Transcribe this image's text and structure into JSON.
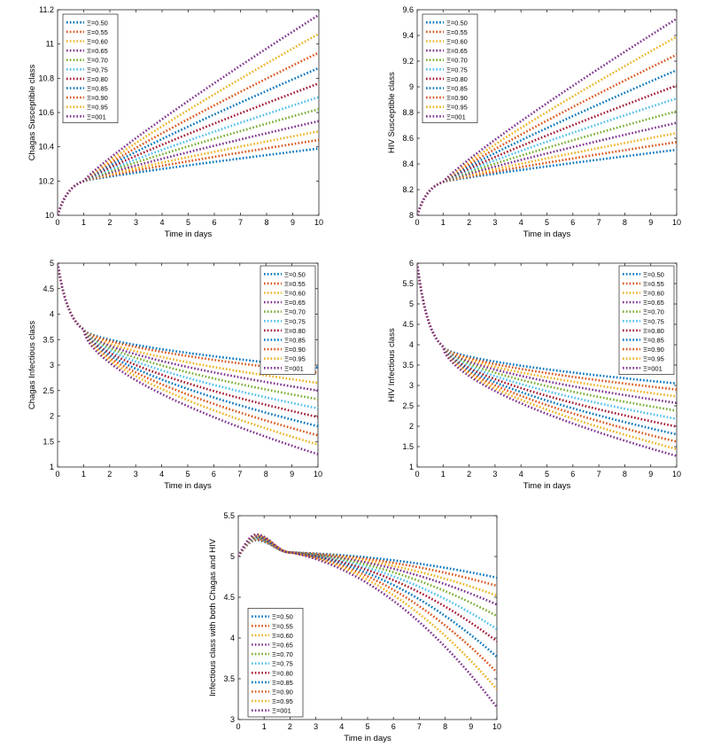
{
  "chart_data": [
    {
      "type": "line",
      "title": "",
      "xlabel": "Time in days",
      "ylabel": "Chagas Susceptible class",
      "xlim": [
        0,
        10
      ],
      "ylim": [
        10,
        11.2
      ],
      "xticks": [
        "0",
        "1",
        "2",
        "3",
        "4",
        "5",
        "6",
        "7",
        "8",
        "9",
        "10"
      ],
      "yticks": [
        "10",
        "10.2",
        "10.4",
        "10.6",
        "10.8",
        "11",
        "11.2"
      ],
      "legend_position": "top-left",
      "cross_x": 1.0,
      "y_start": 10.0,
      "y_cross": 10.2,
      "series": [
        {
          "name": "Ξ=0.50",
          "color": "#0072BD",
          "final": 10.39
        },
        {
          "name": "Ξ=0.55",
          "color": "#D95319",
          "final": 10.44
        },
        {
          "name": "Ξ=0.60",
          "color": "#EDB120",
          "final": 10.49
        },
        {
          "name": "Ξ=0.65",
          "color": "#7E2F8E",
          "final": 10.55
        },
        {
          "name": "Ξ=0.70",
          "color": "#77AC30",
          "final": 10.62
        },
        {
          "name": "Ξ=0.75",
          "color": "#4DBEEE",
          "final": 10.69
        },
        {
          "name": "Ξ=0.80",
          "color": "#A2142F",
          "final": 10.77
        },
        {
          "name": "Ξ=0.85",
          "color": "#0072BD",
          "final": 10.86
        },
        {
          "name": "Ξ=0.90",
          "color": "#D95319",
          "final": 10.95
        },
        {
          "name": "Ξ=0.95",
          "color": "#EDB120",
          "final": 11.06
        },
        {
          "name": "Ξ=001",
          "color": "#7E2F8E",
          "final": 11.17
        }
      ]
    },
    {
      "type": "line",
      "title": "",
      "xlabel": "Time in days",
      "ylabel": "HIV Susceptible class",
      "xlim": [
        0,
        10
      ],
      "ylim": [
        8,
        9.6
      ],
      "xticks": [
        "0",
        "1",
        "2",
        "3",
        "4",
        "5",
        "6",
        "7",
        "8",
        "9",
        "10"
      ],
      "yticks": [
        "8",
        "8.2",
        "8.4",
        "8.6",
        "8.8",
        "9",
        "9.2",
        "9.4",
        "9.6"
      ],
      "legend_position": "top-left",
      "cross_x": 1.0,
      "y_start": 8.0,
      "y_cross": 8.26,
      "series": [
        {
          "name": "Ξ=0.50",
          "color": "#0072BD",
          "final": 8.51
        },
        {
          "name": "Ξ=0.55",
          "color": "#D95319",
          "final": 8.57
        },
        {
          "name": "Ξ=0.60",
          "color": "#EDB120",
          "final": 8.64
        },
        {
          "name": "Ξ=0.65",
          "color": "#7E2F8E",
          "final": 8.72
        },
        {
          "name": "Ξ=0.70",
          "color": "#77AC30",
          "final": 8.81
        },
        {
          "name": "Ξ=0.75",
          "color": "#4DBEEE",
          "final": 8.91
        },
        {
          "name": "Ξ=0.80",
          "color": "#A2142F",
          "final": 9.01
        },
        {
          "name": "Ξ=0.85",
          "color": "#0072BD",
          "final": 9.13
        },
        {
          "name": "Ξ=0.90",
          "color": "#D95319",
          "final": 9.25
        },
        {
          "name": "Ξ=0.95",
          "color": "#EDB120",
          "final": 9.39
        },
        {
          "name": "Ξ=001",
          "color": "#7E2F8E",
          "final": 9.53
        }
      ]
    },
    {
      "type": "line",
      "title": "",
      "xlabel": "Time in days",
      "ylabel": "Chagas Infectious class",
      "xlim": [
        0,
        10
      ],
      "ylim": [
        1,
        5
      ],
      "xticks": [
        "0",
        "1",
        "2",
        "3",
        "4",
        "5",
        "6",
        "7",
        "8",
        "9",
        "10"
      ],
      "yticks": [
        "1",
        "1.5",
        "2",
        "2.5",
        "3",
        "3.5",
        "4",
        "4.5",
        "5"
      ],
      "legend_position": "top-right",
      "cross_x": 1.0,
      "y_start": 5.0,
      "y_cross": 3.7,
      "series": [
        {
          "name": "Ξ=0.50",
          "color": "#0072BD",
          "final": 2.95
        },
        {
          "name": "Ξ=0.55",
          "color": "#D95319",
          "final": 2.85
        },
        {
          "name": "Ξ=0.60",
          "color": "#EDB120",
          "final": 2.65
        },
        {
          "name": "Ξ=0.65",
          "color": "#7E2F8E",
          "final": 2.5
        },
        {
          "name": "Ξ=0.70",
          "color": "#77AC30",
          "final": 2.33
        },
        {
          "name": "Ξ=0.75",
          "color": "#4DBEEE",
          "final": 2.15
        },
        {
          "name": "Ξ=0.80",
          "color": "#A2142F",
          "final": 1.98
        },
        {
          "name": "Ξ=0.85",
          "color": "#0072BD",
          "final": 1.8
        },
        {
          "name": "Ξ=0.90",
          "color": "#D95319",
          "final": 1.62
        },
        {
          "name": "Ξ=0.95",
          "color": "#EDB120",
          "final": 1.44
        },
        {
          "name": "Ξ=001",
          "color": "#7E2F8E",
          "final": 1.25
        }
      ]
    },
    {
      "type": "line",
      "title": "",
      "xlabel": "Time in days",
      "ylabel": "HIV Infectious class",
      "xlim": [
        0,
        10
      ],
      "ylim": [
        1,
        6
      ],
      "xticks": [
        "0",
        "1",
        "2",
        "3",
        "4",
        "5",
        "6",
        "7",
        "8",
        "9",
        "10"
      ],
      "yticks": [
        "1",
        "1.5",
        "2",
        "2.5",
        "3",
        "3.5",
        "4",
        "4.5",
        "5",
        "5.5",
        "6"
      ],
      "legend_position": "top-right",
      "cross_x": 1.0,
      "y_start": 6.0,
      "y_cross": 3.95,
      "series": [
        {
          "name": "Ξ=0.50",
          "color": "#0072BD",
          "final": 3.05
        },
        {
          "name": "Ξ=0.55",
          "color": "#D95319",
          "final": 2.9
        },
        {
          "name": "Ξ=0.60",
          "color": "#EDB120",
          "final": 2.73
        },
        {
          "name": "Ξ=0.65",
          "color": "#7E2F8E",
          "final": 2.57
        },
        {
          "name": "Ξ=0.70",
          "color": "#77AC30",
          "final": 2.38
        },
        {
          "name": "Ξ=0.75",
          "color": "#4DBEEE",
          "final": 2.18
        },
        {
          "name": "Ξ=0.80",
          "color": "#A2142F",
          "final": 1.99
        },
        {
          "name": "Ξ=0.85",
          "color": "#0072BD",
          "final": 1.8
        },
        {
          "name": "Ξ=0.90",
          "color": "#D95319",
          "final": 1.62
        },
        {
          "name": "Ξ=0.95",
          "color": "#EDB120",
          "final": 1.44
        },
        {
          "name": "Ξ=001",
          "color": "#7E2F8E",
          "final": 1.27
        }
      ]
    },
    {
      "type": "line",
      "title": "",
      "xlabel": "Time in days",
      "ylabel": "Infectious class with both Chagas and HIV",
      "xlim": [
        0,
        10
      ],
      "ylim": [
        3,
        5.5
      ],
      "xticks": [
        "0",
        "1",
        "2",
        "3",
        "4",
        "5",
        "6",
        "7",
        "8",
        "9",
        "10"
      ],
      "yticks": [
        "3",
        "3.5",
        "4",
        "4.5",
        "5",
        "5.5"
      ],
      "legend_position": "bottom-left",
      "cross_x": 2.0,
      "y_start": 5.0,
      "y_cross": 5.05,
      "peak_x": 0.7,
      "peak_lo": 5.2,
      "peak_hi": 5.27,
      "series": [
        {
          "name": "Ξ=0.50",
          "color": "#0072BD",
          "final": 4.74
        },
        {
          "name": "Ξ=0.55",
          "color": "#D95319",
          "final": 4.64
        },
        {
          "name": "Ξ=0.60",
          "color": "#EDB120",
          "final": 4.52
        },
        {
          "name": "Ξ=0.65",
          "color": "#7E2F8E",
          "final": 4.41
        },
        {
          "name": "Ξ=0.70",
          "color": "#77AC30",
          "final": 4.27
        },
        {
          "name": "Ξ=0.75",
          "color": "#4DBEEE",
          "final": 4.11
        },
        {
          "name": "Ξ=0.80",
          "color": "#A2142F",
          "final": 3.96
        },
        {
          "name": "Ξ=0.85",
          "color": "#0072BD",
          "final": 3.77
        },
        {
          "name": "Ξ=0.90",
          "color": "#D95319",
          "final": 3.58
        },
        {
          "name": "Ξ=0.95",
          "color": "#EDB120",
          "final": 3.37
        },
        {
          "name": "Ξ=001",
          "color": "#7E2F8E",
          "final": 3.15
        }
      ]
    }
  ]
}
